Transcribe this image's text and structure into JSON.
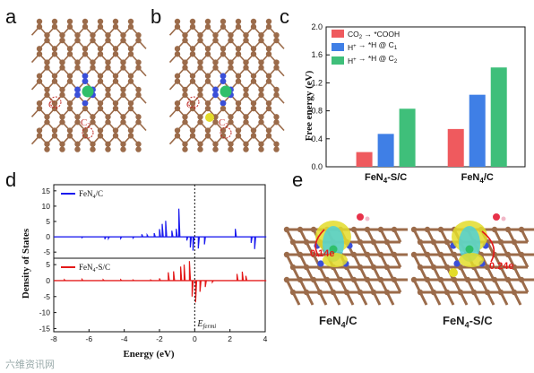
{
  "panel_letters": {
    "a": "a",
    "b": "b",
    "c": "c",
    "d": "d",
    "e": "e"
  },
  "structure_labels": {
    "a": {
      "c1": "C",
      "c1_sub": "1",
      "c2": "C",
      "c2_sub": "2"
    },
    "b": {
      "c1": "C",
      "c1_sub": "1",
      "c2": "C",
      "c2_sub": "2"
    }
  },
  "colors": {
    "carbon": "#9b6b4a",
    "nitrogen": "#3a4fd8",
    "iron": "#2fbf6a",
    "sulfur": "#e3dc2a",
    "bar_cooh": "#ef5a5e",
    "bar_h_c1": "#3f7fe6",
    "bar_h_c2": "#3fbf7a",
    "dos_top": "#1a1aee",
    "dos_bottom": "#e31a1a",
    "charge_label": "#e31a1a"
  },
  "chart_data": [
    {
      "type": "bar",
      "panel": "c",
      "categories": [
        "FeN4-S/C",
        "FeN4/C"
      ],
      "category_labels": [
        {
          "main": "FeN",
          "sub": "4",
          "rest": "-S/C"
        },
        {
          "main": "FeN",
          "sub": "4",
          "rest": "/C"
        }
      ],
      "series": [
        {
          "name": "CO2 → *COOH",
          "legend": {
            "pre": "CO",
            "sub": "2",
            "post": " → *COOH"
          },
          "values": [
            0.21,
            0.54
          ]
        },
        {
          "name": "H+ → *H @ C1",
          "legend": {
            "pre": "H",
            "sup": "+",
            "post": " → *H @ C",
            "sub": "1"
          },
          "values": [
            0.47,
            1.03
          ]
        },
        {
          "name": "H+ → *H @ C2",
          "legend": {
            "pre": "H",
            "sup": "+",
            "post": " → *H @ C",
            "sub": "2"
          },
          "values": [
            0.83,
            1.42
          ]
        }
      ],
      "ylabel": "Free energy (eV)",
      "ylim": [
        0.0,
        2.0
      ],
      "yticks": [
        "0.0",
        "0.4",
        "0.8",
        "1.2",
        "1.6",
        "2.0"
      ],
      "legend_position": "top-left"
    },
    {
      "type": "line",
      "panel": "d",
      "xlabel": "Energy (eV)",
      "ylabel": "Density of States",
      "xlim": [
        -8,
        4
      ],
      "xticks": [
        "-8",
        "-6",
        "-4",
        "-2",
        "0",
        "2",
        "4"
      ],
      "yticks_top": [
        "15",
        "10",
        "5",
        "0",
        "-5"
      ],
      "yticks_bottom": [
        "5",
        "0",
        "-5",
        "-10",
        "-15"
      ],
      "fermi_label": {
        "main": "E",
        "sub": "fermi"
      },
      "series": [
        {
          "name": "FeN4/C",
          "legend": {
            "pre": "FeN",
            "sub": "4",
            "post": "/C"
          },
          "x": [
            -8,
            -7.4,
            -6.4,
            -5.1,
            -4.9,
            -4.2,
            -3.5,
            -3.0,
            -2.7,
            -2.3,
            -2.0,
            -1.85,
            -1.65,
            -1.3,
            -1.05,
            -0.9,
            -0.45,
            -0.25,
            -0.1,
            0.2,
            0.55,
            0.9,
            2.3,
            2.45,
            3.2,
            3.4,
            4.0
          ],
          "y": [
            0,
            0,
            -0.3,
            -0.8,
            -0.6,
            -0.5,
            -0.4,
            0.8,
            0.6,
            1.2,
            2.5,
            4.2,
            5.2,
            2.0,
            2.6,
            9.2,
            -1.2,
            -3.5,
            -4.5,
            -3.8,
            -2.5,
            0,
            2.6,
            0,
            -2.0,
            -4.0,
            0
          ]
        },
        {
          "name": "FeN4-S/C",
          "legend": {
            "pre": "FeN",
            "sub": "4",
            "post": "-S/C"
          },
          "x": [
            -8,
            -7.4,
            -6.4,
            -5.2,
            -4.2,
            -3.5,
            -2.5,
            -2.0,
            -1.5,
            -1.2,
            -0.8,
            -0.6,
            -0.3,
            -0.15,
            0.05,
            0.3,
            0.6,
            1.0,
            2.4,
            2.7,
            2.9,
            3.2,
            4.0
          ],
          "y": [
            0,
            0.3,
            0.4,
            0.3,
            0.3,
            0.2,
            0.2,
            0.7,
            2.6,
            2.9,
            4.4,
            5.0,
            6.1,
            -5.0,
            -6.8,
            -3.5,
            -2.0,
            -0.5,
            2.1,
            2.8,
            1.5,
            0,
            0
          ]
        }
      ]
    }
  ],
  "charge_labels": {
    "left": "0.14e",
    "right": "0.24e"
  },
  "captions": {
    "left": {
      "main": "FeN",
      "sub": "4",
      "rest": "/C"
    },
    "right": {
      "main": "FeN",
      "sub": "4",
      "rest": "-S/C"
    }
  },
  "watermark": "六维资讯网"
}
